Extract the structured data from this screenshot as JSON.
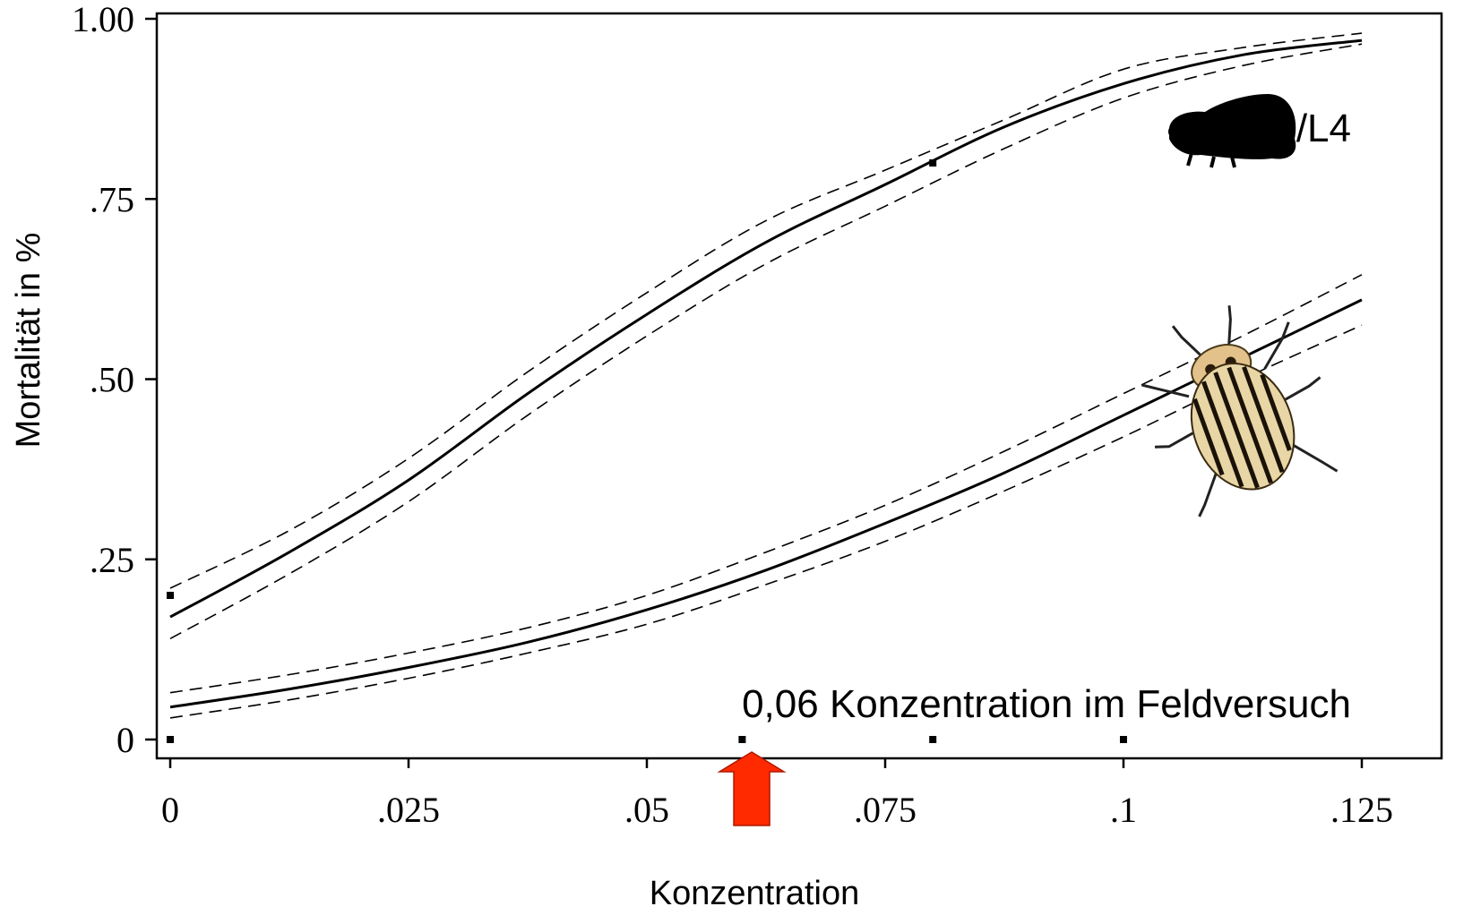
{
  "chart_data": {
    "type": "line",
    "xlabel": "Konzentration",
    "ylabel": "Mortalität in %",
    "xlim": [
      0,
      0.125
    ],
    "ylim": [
      0,
      1
    ],
    "x_ticks": [
      {
        "value": 0,
        "label": "0"
      },
      {
        "value": 0.025,
        "label": ".025"
      },
      {
        "value": 0.05,
        "label": ".05"
      },
      {
        "value": 0.075,
        "label": ".075"
      },
      {
        "value": 0.1,
        "label": ".1"
      },
      {
        "value": 0.125,
        "label": ".125"
      }
    ],
    "y_ticks": [
      {
        "value": 0,
        "label": "0"
      },
      {
        "value": 0.25,
        "label": ".25"
      },
      {
        "value": 0.5,
        "label": ".50"
      },
      {
        "value": 0.75,
        "label": ".75"
      },
      {
        "value": 1.0,
        "label": "1.00"
      }
    ],
    "series": [
      {
        "label": "L3/L4",
        "style": "fit",
        "x": [
          0,
          0.0125,
          0.025,
          0.0375,
          0.05,
          0.0625,
          0.075,
          0.0875,
          0.1,
          0.1125,
          0.125
        ],
        "y": [
          0.17,
          0.26,
          0.36,
          0.48,
          0.59,
          0.69,
          0.77,
          0.85,
          0.91,
          0.95,
          0.97
        ],
        "lower": [
          0.14,
          0.23,
          0.33,
          0.45,
          0.56,
          0.66,
          0.74,
          0.82,
          0.89,
          0.935,
          0.965
        ],
        "upper": [
          0.21,
          0.29,
          0.39,
          0.51,
          0.62,
          0.72,
          0.79,
          0.86,
          0.93,
          0.96,
          0.98
        ]
      },
      {
        "label": "",
        "style": "fit",
        "x": [
          0,
          0.0125,
          0.025,
          0.0375,
          0.05,
          0.0625,
          0.075,
          0.0875,
          0.1,
          0.1125,
          0.125
        ],
        "y": [
          0.045,
          0.07,
          0.1,
          0.135,
          0.18,
          0.235,
          0.3,
          0.37,
          0.45,
          0.53,
          0.61
        ],
        "lower": [
          0.03,
          0.055,
          0.085,
          0.12,
          0.16,
          0.215,
          0.275,
          0.345,
          0.42,
          0.5,
          0.575
        ],
        "upper": [
          0.065,
          0.09,
          0.12,
          0.155,
          0.2,
          0.26,
          0.325,
          0.4,
          0.48,
          0.56,
          0.645
        ]
      }
    ],
    "observations": [
      {
        "x": 0,
        "y": 0.2
      },
      {
        "x": 0.08,
        "y": 0.8
      },
      {
        "x": 0,
        "y": 0
      },
      {
        "x": 0.06,
        "y": 0
      },
      {
        "x": 0.08,
        "y": 0
      },
      {
        "x": 0.1,
        "y": 0
      }
    ],
    "annotations": {
      "label_l3l4": "L3/L4",
      "field_note": "0,06 Konzentration im Feldversuch",
      "arrow_x": 0.061,
      "arrow_color": "#ff2a00"
    },
    "grid": false,
    "legend": "none"
  }
}
